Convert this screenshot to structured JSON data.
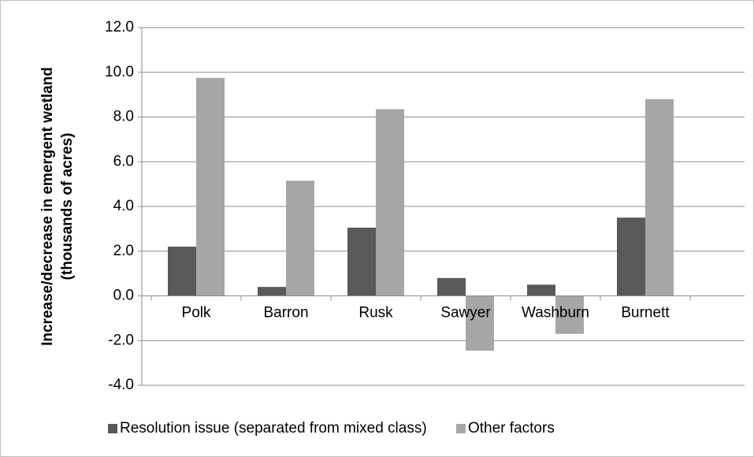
{
  "chart_data": {
    "type": "bar",
    "y_label": [
      "Increase/decrease in emergent wetland",
      "(thousands of acres)"
    ],
    "categories": [
      "Polk",
      "Barron",
      "Rusk",
      "Sawyer",
      "Washburn",
      "Burnett"
    ],
    "series": [
      {
        "name": "Resolution issue (separated from mixed class)",
        "color": "#595959",
        "values": [
          2.2,
          0.4,
          3.05,
          0.8,
          0.5,
          3.5
        ]
      },
      {
        "name": "Other factors",
        "color": "#a6a6a6",
        "values": [
          9.75,
          5.15,
          8.35,
          -2.45,
          -1.7,
          8.8
        ]
      }
    ],
    "ylim": [
      -4,
      12
    ],
    "yticks": [
      {
        "value": -4,
        "label": "-4.0"
      },
      {
        "value": -2,
        "label": "-2.0"
      },
      {
        "value": 0,
        "label": "0.0"
      },
      {
        "value": 2,
        "label": "2.0"
      },
      {
        "value": 4,
        "label": "4.0"
      },
      {
        "value": 6,
        "label": "6.0"
      },
      {
        "value": 8,
        "label": "8.0"
      },
      {
        "value": 10,
        "label": "10.0"
      },
      {
        "value": 12,
        "label": "12.0"
      }
    ],
    "grid": true,
    "legend": "bottom"
  }
}
